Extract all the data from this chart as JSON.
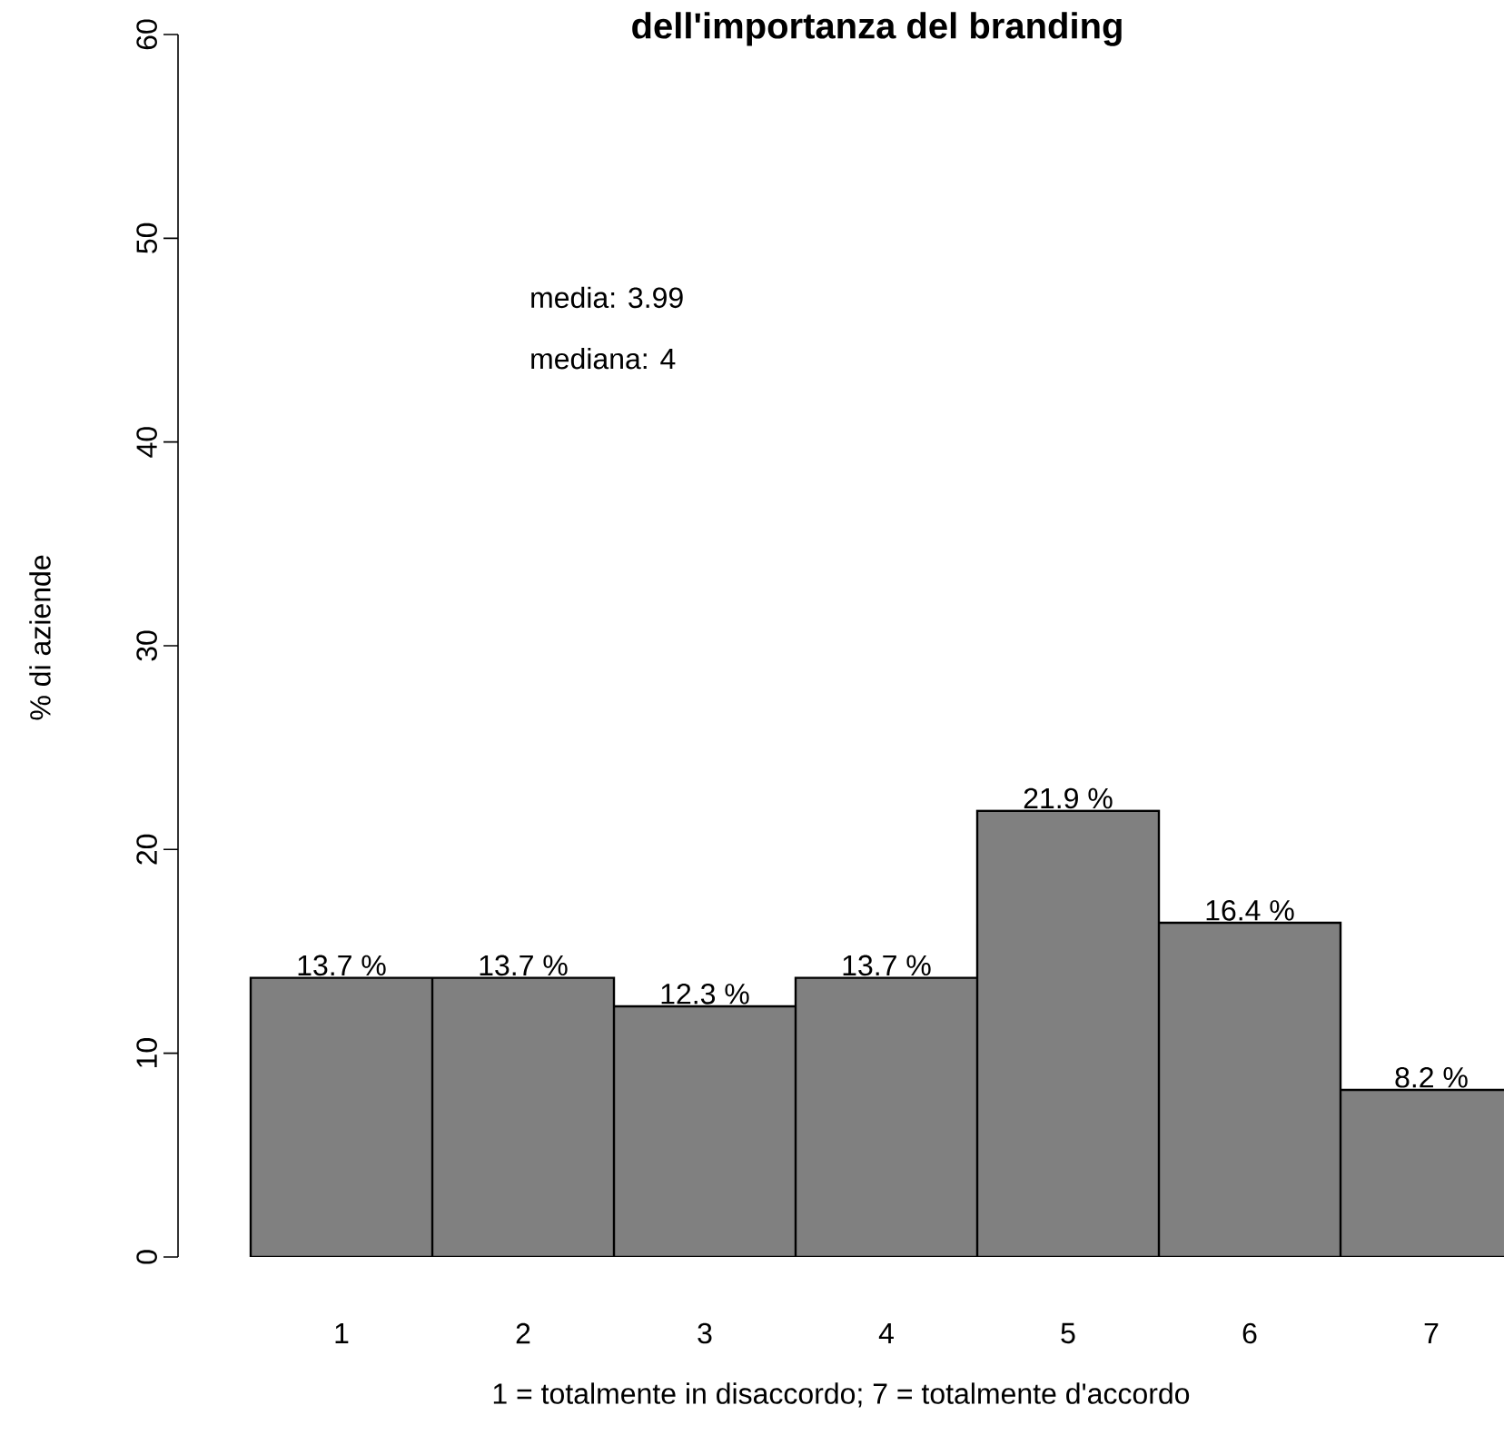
{
  "chart_data": {
    "type": "bar",
    "title": "dell'importanza del branding",
    "xlabel": "1 = totalmente in disaccordo; 7 = totalmente   d'accordo",
    "ylabel": "% di aziende",
    "categories": [
      "1",
      "2",
      "3",
      "4",
      "5",
      "6",
      "7"
    ],
    "values": [
      13.7,
      13.7,
      12.3,
      13.7,
      21.9,
      16.4,
      8.2
    ],
    "value_labels": [
      "13.7 %",
      "13.7 %",
      "12.3 %",
      "13.7 %",
      "21.9 %",
      "16.4 %",
      "8.2 %"
    ],
    "color": "#808080",
    "ylim": [
      0,
      60
    ],
    "yticks": [
      0,
      10,
      20,
      30,
      40,
      50,
      60
    ],
    "annotations": [
      "media: 3.99",
      "mediana: 4"
    ],
    "grid": false
  }
}
